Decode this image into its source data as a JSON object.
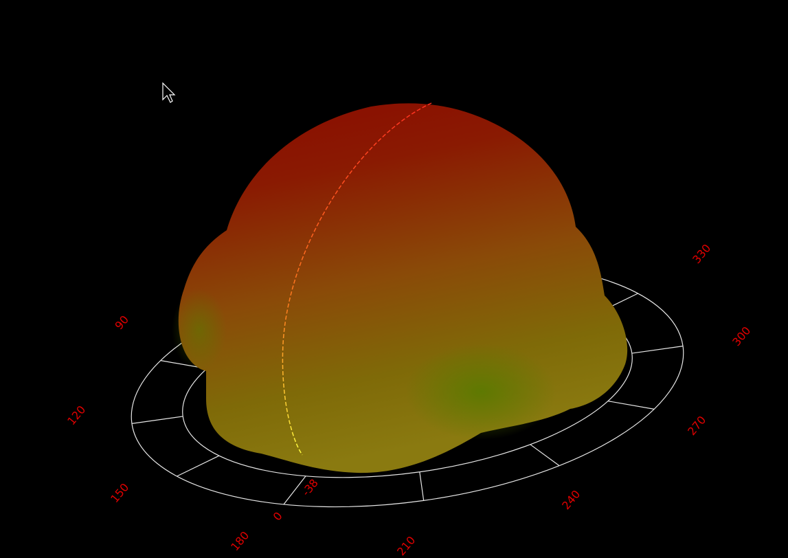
{
  "polar_axis": {
    "angle_labels": [
      "90",
      "120",
      "150",
      "180",
      "210",
      "240",
      "270",
      "300",
      "330"
    ],
    "radial_labels": [
      "0",
      "-38"
    ]
  }
}
